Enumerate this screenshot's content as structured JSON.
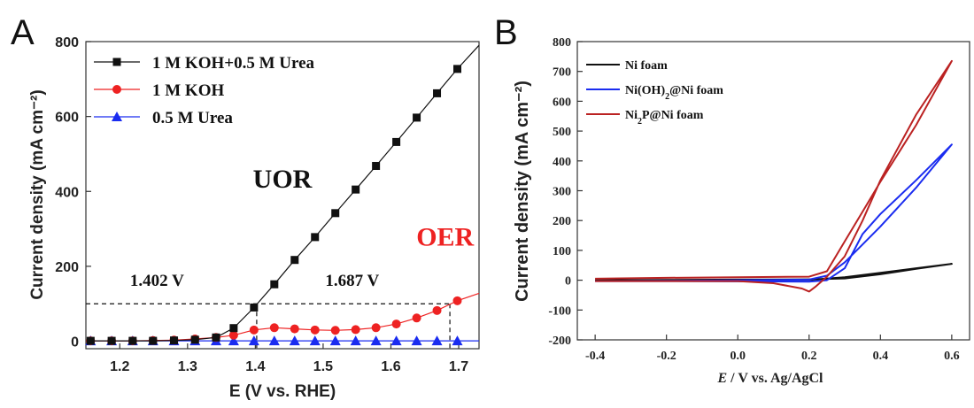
{
  "chart_data": [
    {
      "panel_label": "A",
      "type": "line",
      "xlabel": "E (V vs. RHE)",
      "ylabel": "Current density (mA cm⁻²)",
      "xlim": [
        1.15,
        1.73
      ],
      "ylim": [
        -20,
        800
      ],
      "xticks": [
        "1.2",
        "1.3",
        "1.4",
        "1.5",
        "1.6",
        "1.7"
      ],
      "xtick_values": [
        1.2,
        1.3,
        1.4,
        1.5,
        1.6,
        1.7
      ],
      "yticks": [
        "0",
        "200",
        "400",
        "600",
        "800"
      ],
      "ytick_values": [
        0,
        200,
        400,
        600,
        800
      ],
      "legend_position": "top-left",
      "series": [
        {
          "name": "1 M KOH+0.5 M Urea",
          "color": "#111111",
          "marker": "square",
          "x": [
            1.157,
            1.188,
            1.219,
            1.249,
            1.28,
            1.311,
            1.342,
            1.368,
            1.398,
            1.428,
            1.458,
            1.488,
            1.518,
            1.548,
            1.578,
            1.608,
            1.638,
            1.668,
            1.698,
            1.73
          ],
          "y": [
            1,
            1,
            1,
            1,
            2,
            4,
            10,
            35,
            90,
            152,
            217,
            278,
            342,
            405,
            468,
            532,
            597,
            662,
            727,
            790
          ]
        },
        {
          "name": "1 M KOH",
          "color": "#ee2222",
          "marker": "circle",
          "x": [
            1.157,
            1.188,
            1.219,
            1.249,
            1.28,
            1.311,
            1.342,
            1.368,
            1.398,
            1.428,
            1.458,
            1.488,
            1.518,
            1.548,
            1.578,
            1.608,
            1.638,
            1.668,
            1.698,
            1.73
          ],
          "y": [
            1,
            1,
            1,
            2,
            3,
            6,
            10,
            16,
            30,
            36,
            33,
            30,
            29,
            31,
            36,
            46,
            62,
            82,
            108,
            128
          ]
        },
        {
          "name": "0.5 M Urea",
          "color": "#1a2cf0",
          "marker": "triangle",
          "x": [
            1.157,
            1.188,
            1.219,
            1.249,
            1.28,
            1.311,
            1.342,
            1.368,
            1.398,
            1.428,
            1.458,
            1.488,
            1.518,
            1.548,
            1.578,
            1.608,
            1.638,
            1.668,
            1.698,
            1.73
          ],
          "y": [
            1,
            1,
            1,
            1,
            1,
            1,
            1,
            1,
            1,
            1,
            1,
            1,
            1,
            1,
            1,
            1,
            1,
            1,
            1,
            1
          ]
        }
      ],
      "annotations": [
        {
          "text": "UOR",
          "x": 1.44,
          "y": 410,
          "color": "#111111"
        },
        {
          "text": "OER",
          "x": 1.68,
          "y": 255,
          "color": "#ee2222"
        },
        {
          "text": "1.402 V",
          "x": 1.255,
          "y": 148,
          "color": "#111111"
        },
        {
          "text": "1.687 V",
          "x": 1.543,
          "y": 148,
          "color": "#111111"
        }
      ],
      "reference_lines": {
        "y": 100,
        "x_values": [
          1.402,
          1.687
        ]
      }
    },
    {
      "panel_label": "B",
      "type": "line",
      "xlabel": "E / V vs. Ag/AgCl",
      "ylabel": "Current density (mA cm⁻²)",
      "xlim": [
        -0.45,
        0.65
      ],
      "ylim": [
        -200,
        800
      ],
      "xticks": [
        "-0.4",
        "-0.2",
        "0.0",
        "0.2",
        "0.4",
        "0.6"
      ],
      "xtick_values": [
        -0.4,
        -0.2,
        0.0,
        0.2,
        0.4,
        0.6
      ],
      "yticks": [
        "-200",
        "-100",
        "0",
        "100",
        "200",
        "300",
        "400",
        "500",
        "600",
        "700",
        "800"
      ],
      "ytick_values": [
        -200,
        -100,
        0,
        100,
        200,
        300,
        400,
        500,
        600,
        700,
        800
      ],
      "legend_position": "top-left",
      "series": [
        {
          "name": "Ni foam",
          "color": "#111111",
          "x": [
            -0.4,
            -0.2,
            0.0,
            0.2,
            0.3,
            0.4,
            0.5,
            0.6,
            0.5,
            0.4,
            0.3,
            0.2,
            0.0,
            -0.2,
            -0.4
          ],
          "y": [
            0,
            1,
            2,
            3,
            6,
            20,
            38,
            55,
            40,
            25,
            10,
            1,
            0,
            0,
            0
          ]
        },
        {
          "name": "Ni(OH)2@Ni foam",
          "color": "#1a2cf0",
          "x": [
            -0.4,
            -0.2,
            0.0,
            0.2,
            0.25,
            0.3,
            0.35,
            0.4,
            0.5,
            0.6,
            0.5,
            0.4,
            0.35,
            0.3,
            0.25,
            0.2,
            0.0,
            -0.2,
            -0.4
          ],
          "y": [
            -3,
            -2,
            0,
            2,
            15,
            60,
            120,
            180,
            310,
            455,
            335,
            222,
            155,
            40,
            0,
            -5,
            -4,
            -3,
            -3
          ]
        },
        {
          "name": "Ni2P@Ni foam",
          "color": "#bb2222",
          "x": [
            -0.4,
            -0.2,
            0.0,
            0.2,
            0.25,
            0.3,
            0.35,
            0.4,
            0.5,
            0.6,
            0.5,
            0.4,
            0.35,
            0.3,
            0.25,
            0.22,
            0.2,
            0.18,
            0.1,
            0.0,
            -0.2,
            -0.4
          ],
          "y": [
            5,
            8,
            10,
            12,
            30,
            130,
            230,
            330,
            520,
            735,
            555,
            335,
            200,
            80,
            12,
            -20,
            -38,
            -28,
            -10,
            -3,
            -3,
            -3
          ]
        }
      ]
    }
  ]
}
